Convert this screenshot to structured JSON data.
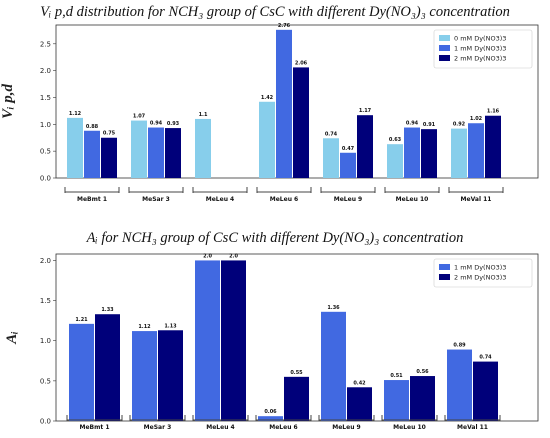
{
  "charts": [
    {
      "title": "Vᵢ p,d distribution for NCH₃ group of CsC with different Dy(NO₃)₃ concentration",
      "ylabel": "Vᵢ p,d",
      "type": "bar",
      "categories": [
        "MeBmt 1",
        "MeSar 3",
        "MeLeu 4",
        "MeLeu 6",
        "MeLeu 9",
        "MeLeu 10",
        "MeVal 11"
      ],
      "highlight_category": "MeLeu 4",
      "highlight_color": "#d40000",
      "ylim": [
        0,
        2.85
      ],
      "yticks": [
        "0.0",
        "0.5",
        "1.0",
        "1.5",
        "2.0",
        "2.5"
      ],
      "grid": false,
      "legend_position": "top-right",
      "series": [
        {
          "name": "0 mM Dy(NO3)3",
          "color": "#87ceeb",
          "values": [
            1.12,
            1.07,
            1.1,
            1.42,
            0.74,
            0.63,
            0.92
          ],
          "labels": [
            "1.12",
            "1.07",
            "1.1",
            "1.42",
            "0.74",
            "0.63",
            "0.92"
          ]
        },
        {
          "name": "1 mM Dy(NO3)3",
          "color": "#4169e1",
          "values": [
            0.88,
            0.94,
            null,
            2.76,
            0.47,
            0.94,
            1.02
          ],
          "labels": [
            "0.88",
            "0.94",
            "",
            "2.76",
            "0.47",
            "0.94",
            "1.02"
          ]
        },
        {
          "name": "2 mM Dy(NO3)3",
          "color": "#00007a",
          "values": [
            0.75,
            0.93,
            null,
            2.06,
            1.17,
            0.91,
            1.16
          ],
          "labels": [
            "0.75",
            "0.93",
            "",
            "2.06",
            "1.17",
            "0.91",
            "1.16"
          ]
        }
      ]
    },
    {
      "title": "Aᵢ for NCH₃ group of CsC with different Dy(NO₃)₃ concentration",
      "ylabel": "Aᵢ",
      "type": "bar",
      "categories": [
        "MeBmt 1",
        "MeSar 3",
        "MeLeu 4",
        "MeLeu 6",
        "MeLeu 9",
        "MeLeu 10",
        "MeVal 11"
      ],
      "highlight_category": "MeLeu 4",
      "highlight_color": "#d40000",
      "ylim": [
        0,
        2.08
      ],
      "yticks": [
        "0.0",
        "0.5",
        "1.0",
        "1.5",
        "2.0"
      ],
      "grid": false,
      "legend_position": "top-right",
      "series": [
        {
          "name": "1 mM Dy(NO3)3",
          "color": "#4169e1",
          "values": [
            1.21,
            1.12,
            2.0,
            0.06,
            1.36,
            0.51,
            0.89
          ],
          "labels": [
            "1.21",
            "1.12",
            "2.0",
            "0.06",
            "1.36",
            "0.51",
            "0.89"
          ]
        },
        {
          "name": "2 mM Dy(NO3)3",
          "color": "#00007a",
          "values": [
            1.33,
            1.13,
            2.0,
            0.55,
            0.42,
            0.56,
            0.74
          ],
          "labels": [
            "1.33",
            "1.13",
            "2.0",
            "0.55",
            "0.42",
            "0.56",
            "0.74"
          ]
        }
      ]
    }
  ],
  "chart_data": [
    {
      "type": "bar",
      "title": "Vᵢ p,d distribution for NCH₃ group of CsC with different Dy(NO₃)₃ concentration",
      "ylabel": "Vᵢ p,d",
      "categories": [
        "MeBmt 1",
        "MeSar 3",
        "MeLeu 4",
        "MeLeu 6",
        "MeLeu 9",
        "MeLeu 10",
        "MeVal 11"
      ],
      "ylim": [
        0,
        2.85
      ],
      "series": [
        {
          "name": "0 mM Dy(NO3)3",
          "values": [
            1.12,
            1.07,
            1.1,
            1.42,
            0.74,
            0.63,
            0.92
          ]
        },
        {
          "name": "1 mM Dy(NO3)3",
          "values": [
            0.88,
            0.94,
            null,
            2.76,
            0.47,
            0.94,
            1.02
          ]
        },
        {
          "name": "2 mM Dy(NO3)3",
          "values": [
            0.75,
            0.93,
            null,
            2.06,
            1.17,
            0.91,
            1.16
          ]
        }
      ]
    },
    {
      "type": "bar",
      "title": "Aᵢ for NCH₃ group of CsC with different Dy(NO₃)₃ concentration",
      "ylabel": "Aᵢ",
      "categories": [
        "MeBmt 1",
        "MeSar 3",
        "MeLeu 4",
        "MeLeu 6",
        "MeLeu 9",
        "MeLeu 10",
        "MeVal 11"
      ],
      "ylim": [
        0,
        2.08
      ],
      "series": [
        {
          "name": "1 mM Dy(NO3)3",
          "values": [
            1.21,
            1.12,
            2.0,
            0.06,
            1.36,
            0.51,
            0.89
          ]
        },
        {
          "name": "2 mM Dy(NO3)3",
          "values": [
            1.33,
            1.13,
            2.0,
            0.55,
            0.42,
            0.56,
            0.74
          ]
        }
      ]
    }
  ]
}
